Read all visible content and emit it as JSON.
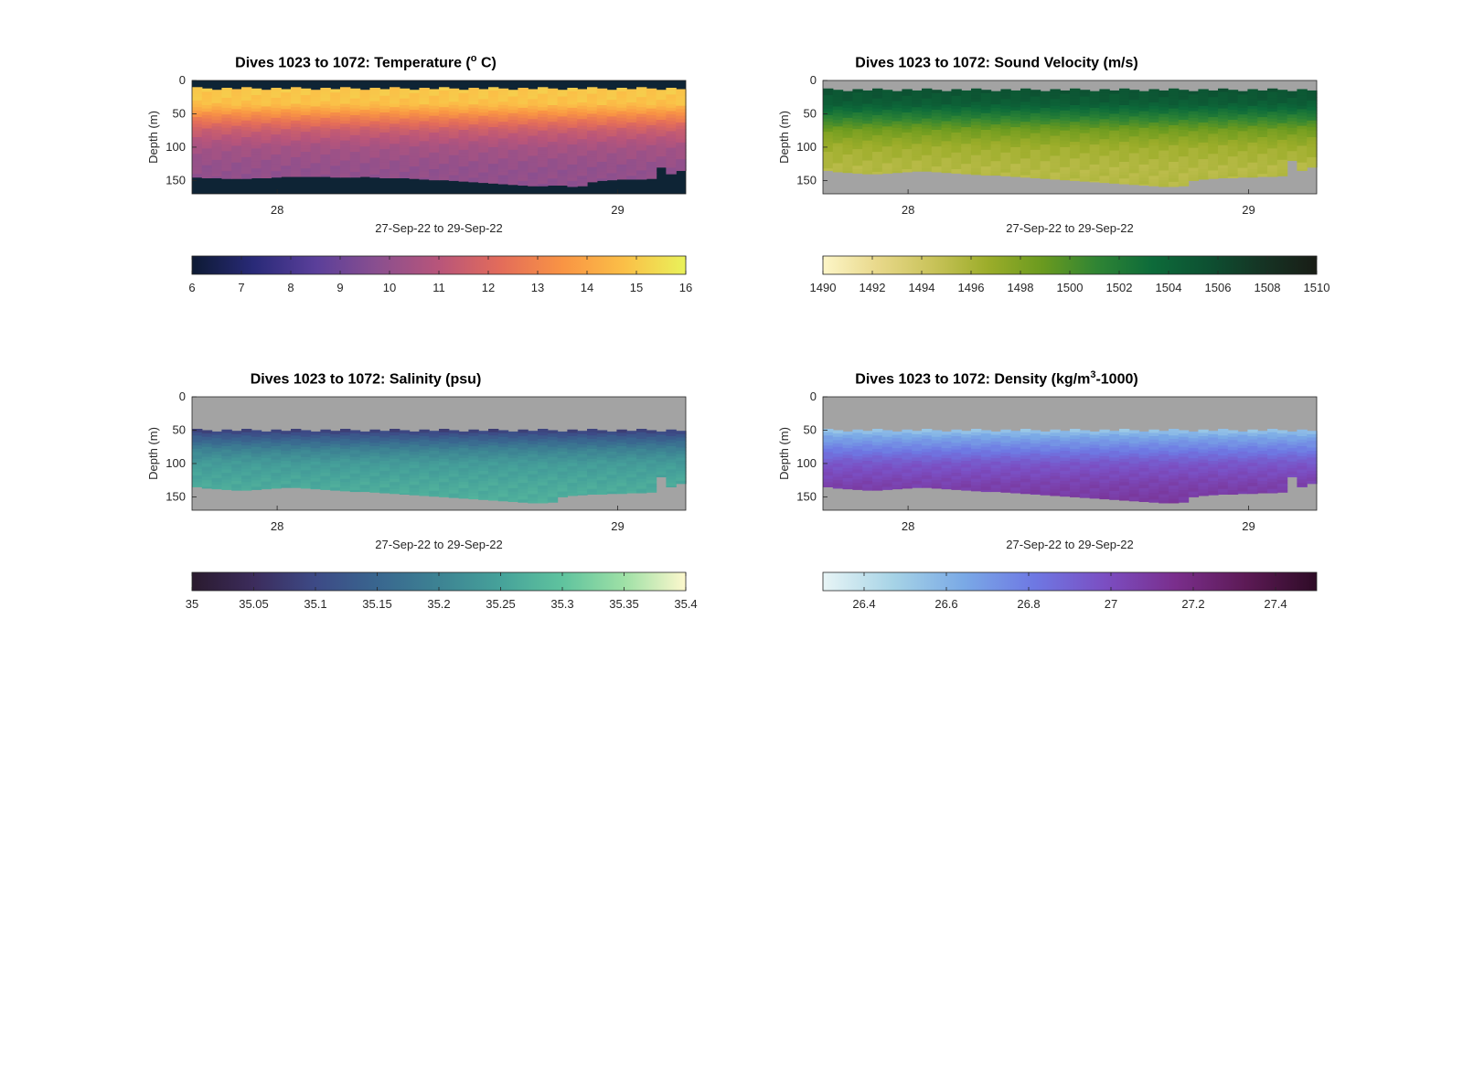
{
  "chart_data": [
    {
      "type": "heatmap",
      "title": {
        "pre": "Dives 1023 to 1072: Temperature (",
        "sup": "o",
        "post": " C)"
      },
      "xlabel": "27-Sep-22 to 29-Sep-22",
      "ylabel": "Depth (m)",
      "xlim": [
        27.75,
        29.2
      ],
      "ylim": [
        0,
        170
      ],
      "x_ticks": [
        {
          "value": 28,
          "label": "28"
        },
        {
          "value": 29,
          "label": "29"
        }
      ],
      "y_ticks": [
        {
          "value": 0,
          "label": "0"
        },
        {
          "value": 50,
          "label": "50"
        },
        {
          "value": 100,
          "label": "100"
        },
        {
          "value": 150,
          "label": "150"
        }
      ],
      "nodata_color": "#0e2435",
      "surface_depth_m": 10,
      "dive_count": 50,
      "bottom_depth_m": [
        145,
        146,
        146,
        147,
        147,
        147,
        146,
        146,
        145,
        144,
        144,
        144,
        144,
        144,
        145,
        145,
        145,
        144,
        145,
        146,
        146,
        146,
        147,
        148,
        149,
        149,
        150,
        151,
        152,
        153,
        154,
        155,
        156,
        157,
        158,
        158,
        157,
        157,
        159,
        158,
        152,
        150,
        149,
        148,
        148,
        148,
        147,
        130,
        140,
        135
      ],
      "profile": [
        [
          10,
          15.0
        ],
        [
          35,
          14.8
        ],
        [
          55,
          13.0
        ],
        [
          75,
          11.5
        ],
        [
          100,
          10.5
        ],
        [
          130,
          10.0
        ],
        [
          160,
          9.9
        ]
      ],
      "colorbar": {
        "min": 6,
        "max": 16,
        "ticks": [
          "6",
          "7",
          "8",
          "9",
          "10",
          "11",
          "12",
          "13",
          "14",
          "15",
          "16"
        ],
        "colors": [
          "#0d1a33",
          "#292a78",
          "#5a3f9a",
          "#8a4f8f",
          "#b8557a",
          "#e36c5a",
          "#f99444",
          "#fbbf47",
          "#e9f25a"
        ]
      }
    },
    {
      "type": "heatmap",
      "title": {
        "pre": "Dives 1023 to 1072: Sound Velocity (m/s)",
        "sup": "",
        "post": ""
      },
      "xlabel": "27-Sep-22 to 29-Sep-22",
      "ylabel": "Depth (m)",
      "xlim": [
        27.75,
        29.2
      ],
      "ylim": [
        0,
        170
      ],
      "x_ticks": [
        {
          "value": 28,
          "label": "28"
        },
        {
          "value": 29,
          "label": "29"
        }
      ],
      "y_ticks": [
        {
          "value": 0,
          "label": "0"
        },
        {
          "value": 50,
          "label": "50"
        },
        {
          "value": 100,
          "label": "100"
        },
        {
          "value": 150,
          "label": "150"
        }
      ],
      "nodata_color": "#a3a3a3",
      "surface_depth_m": 12,
      "dive_count": 50,
      "bottom_depth_m": [
        135,
        137,
        138,
        139,
        140,
        140,
        139,
        138,
        137,
        136,
        136,
        137,
        138,
        139,
        140,
        141,
        142,
        142,
        143,
        144,
        145,
        146,
        147,
        148,
        149,
        150,
        151,
        152,
        153,
        154,
        155,
        156,
        157,
        158,
        159,
        159,
        158,
        150,
        148,
        147,
        146,
        146,
        145,
        145,
        144,
        144,
        143,
        120,
        135,
        130
      ],
      "profile": [
        [
          12,
          1505.5
        ],
        [
          35,
          1504.5
        ],
        [
          55,
          1501.5
        ],
        [
          75,
          1498.5
        ],
        [
          100,
          1496.5
        ],
        [
          130,
          1495.5
        ],
        [
          160,
          1495.3
        ]
      ],
      "colorbar": {
        "min": 1490,
        "max": 1510,
        "ticks": [
          "1490",
          "1492",
          "1494",
          "1496",
          "1498",
          "1500",
          "1502",
          "1504",
          "1506",
          "1508",
          "1510"
        ],
        "colors": [
          "#fdf6c8",
          "#e8d88a",
          "#c9c35a",
          "#9cad2a",
          "#6a9a1f",
          "#2f8434",
          "#0d6b3a",
          "#0d5132",
          "#153424",
          "#191d16"
        ]
      }
    },
    {
      "type": "heatmap",
      "title": {
        "pre": "Dives 1023 to 1072: Salinity (psu)",
        "sup": "",
        "post": ""
      },
      "xlabel": "27-Sep-22 to 29-Sep-22",
      "ylabel": "Depth (m)",
      "xlim": [
        27.75,
        29.2
      ],
      "ylim": [
        0,
        170
      ],
      "x_ticks": [
        {
          "value": 28,
          "label": "28"
        },
        {
          "value": 29,
          "label": "29"
        }
      ],
      "y_ticks": [
        {
          "value": 0,
          "label": "0"
        },
        {
          "value": 50,
          "label": "50"
        },
        {
          "value": 100,
          "label": "100"
        },
        {
          "value": 150,
          "label": "150"
        }
      ],
      "nodata_color": "#a3a3a3",
      "surface_depth_m": 48,
      "dive_count": 50,
      "bottom_depth_m": [
        135,
        137,
        138,
        139,
        140,
        140,
        139,
        138,
        137,
        136,
        136,
        137,
        138,
        139,
        140,
        141,
        142,
        142,
        143,
        144,
        145,
        146,
        147,
        148,
        149,
        150,
        151,
        152,
        153,
        154,
        155,
        156,
        157,
        158,
        159,
        159,
        158,
        150,
        148,
        147,
        146,
        146,
        145,
        145,
        144,
        144,
        143,
        120,
        135,
        130
      ],
      "profile": [
        [
          48,
          35.07
        ],
        [
          60,
          35.13
        ],
        [
          80,
          35.2
        ],
        [
          100,
          35.24
        ],
        [
          130,
          35.26
        ],
        [
          160,
          35.27
        ]
      ],
      "colorbar": {
        "min": 35,
        "max": 35.4,
        "ticks": [
          "35",
          "35.05",
          "35.1",
          "35.15",
          "35.2",
          "35.25",
          "35.3",
          "35.35",
          "35.4"
        ],
        "colors": [
          "#2a1a2e",
          "#3c2c5c",
          "#3d4a86",
          "#39668f",
          "#3d8393",
          "#46a29a",
          "#5fc39e",
          "#9ee0a6",
          "#fdf8cd"
        ]
      }
    },
    {
      "type": "heatmap",
      "title": {
        "pre": "Dives 1023 to 1072: Density (kg/m",
        "sup": "3",
        "post": "-1000)"
      },
      "xlabel": "27-Sep-22 to 29-Sep-22",
      "ylabel": "Depth (m)",
      "xlim": [
        27.75,
        29.2
      ],
      "ylim": [
        0,
        170
      ],
      "x_ticks": [
        {
          "value": 28,
          "label": "28"
        },
        {
          "value": 29,
          "label": "29"
        }
      ],
      "y_ticks": [
        {
          "value": 0,
          "label": "0"
        },
        {
          "value": 50,
          "label": "50"
        },
        {
          "value": 100,
          "label": "100"
        },
        {
          "value": 150,
          "label": "150"
        }
      ],
      "nodata_color": "#a3a3a3",
      "surface_depth_m": 48,
      "dive_count": 50,
      "bottom_depth_m": [
        135,
        137,
        138,
        139,
        140,
        140,
        139,
        138,
        137,
        136,
        136,
        137,
        138,
        139,
        140,
        141,
        142,
        142,
        143,
        144,
        145,
        146,
        147,
        148,
        149,
        150,
        151,
        152,
        153,
        154,
        155,
        156,
        157,
        158,
        159,
        159,
        158,
        150,
        148,
        147,
        146,
        146,
        145,
        145,
        144,
        144,
        143,
        120,
        135,
        130
      ],
      "profile": [
        [
          48,
          26.5
        ],
        [
          60,
          26.65
        ],
        [
          80,
          26.8
        ],
        [
          100,
          26.95
        ],
        [
          130,
          27.05
        ],
        [
          160,
          27.1
        ]
      ],
      "colorbar": {
        "min": 26.3,
        "max": 27.5,
        "ticks": [
          "26.4",
          "26.6",
          "26.8",
          "27",
          "27.2",
          "27.4"
        ],
        "tick_values": [
          26.4,
          26.6,
          26.8,
          27.0,
          27.2,
          27.4
        ],
        "colors": [
          "#e8f5f6",
          "#a6d3e6",
          "#7aa9e6",
          "#6e78e3",
          "#7b4ec2",
          "#7a2e8c",
          "#5c1a55",
          "#2e0b26"
        ]
      }
    }
  ]
}
